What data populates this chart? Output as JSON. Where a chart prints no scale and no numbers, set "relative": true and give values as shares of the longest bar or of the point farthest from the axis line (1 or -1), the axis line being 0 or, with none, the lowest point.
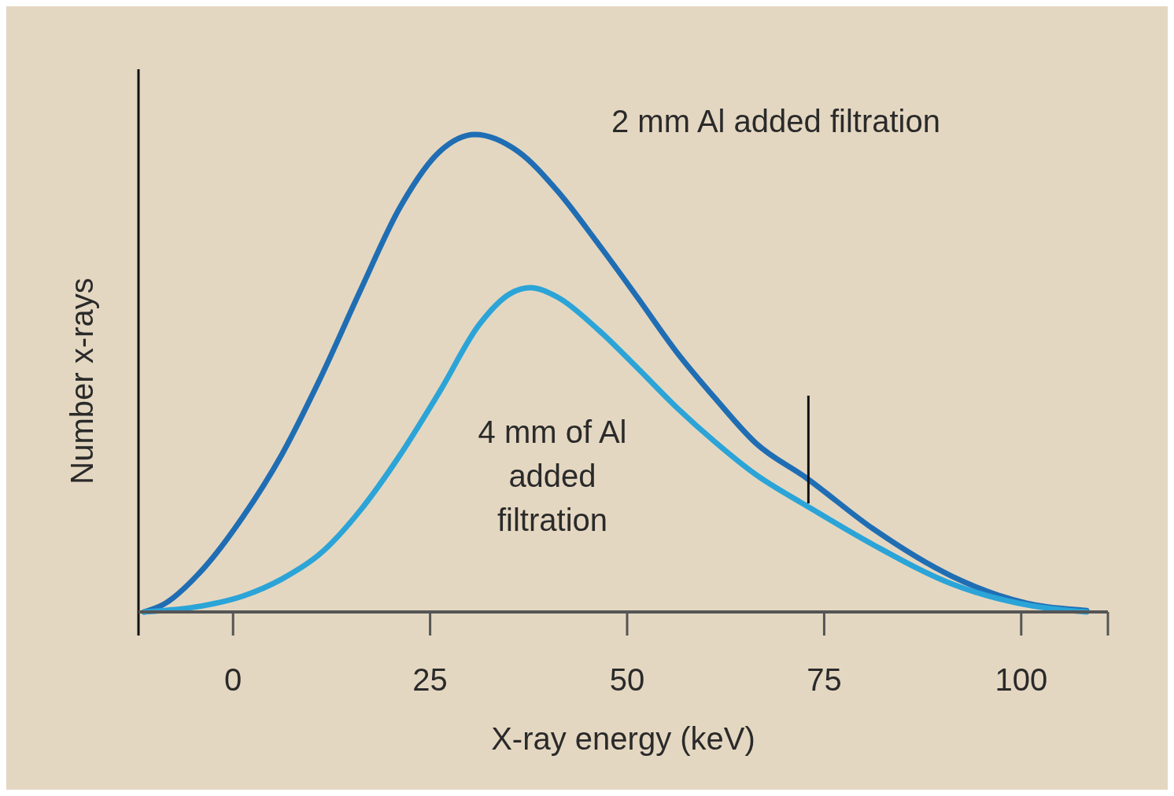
{
  "chart_data": {
    "type": "line",
    "relative": true,
    "xlabel": "X-ray energy (keV)",
    "ylabel": "Number x-rays",
    "xlim": [
      -12,
      111
    ],
    "xticks": [
      0,
      25,
      50,
      75,
      100
    ],
    "grid": false,
    "line_style": "solid",
    "marker": "none",
    "series": [
      {
        "name": "2 mm Al added filtration",
        "color": "#1f6eb4",
        "x": [
          -11.3,
          -8.8,
          -3.8,
          1.2,
          6.2,
          11.2,
          16.2,
          21.2,
          26.2,
          30.7,
          36.2,
          41.2,
          46.2,
          51.3,
          56.3,
          61.3,
          66.3,
          72.8,
          81.3,
          91.3,
          101.3,
          108.3
        ],
        "values": [
          0,
          0.016,
          0.09,
          0.198,
          0.33,
          0.494,
          0.675,
          0.848,
          0.964,
          1,
          0.964,
          0.881,
          0.774,
          0.659,
          0.544,
          0.445,
          0.354,
          0.28,
          0.173,
          0.074,
          0.016,
          0.003
        ]
      },
      {
        "name": "4 mm of Al added filtration",
        "color": "#2ba4d8",
        "x": [
          -11.3,
          -3.8,
          1.2,
          6.2,
          11.2,
          16.2,
          21.2,
          26.2,
          31.2,
          35.2,
          37.7,
          41.2,
          46.2,
          51.3,
          56.3,
          61.3,
          66.3,
          72.8,
          81.3,
          91.3,
          101.3,
          108.3
        ],
        "values": [
          0,
          0.013,
          0.033,
          0.069,
          0.124,
          0.214,
          0.329,
          0.461,
          0.601,
          0.667,
          0.679,
          0.659,
          0.593,
          0.511,
          0.428,
          0.354,
          0.288,
          0.222,
          0.14,
          0.058,
          0.013,
          0
        ]
      }
    ],
    "ref_lines": [
      {
        "axis": "x",
        "value": 73,
        "color": "#111111",
        "line_style": "solid"
      }
    ]
  }
}
